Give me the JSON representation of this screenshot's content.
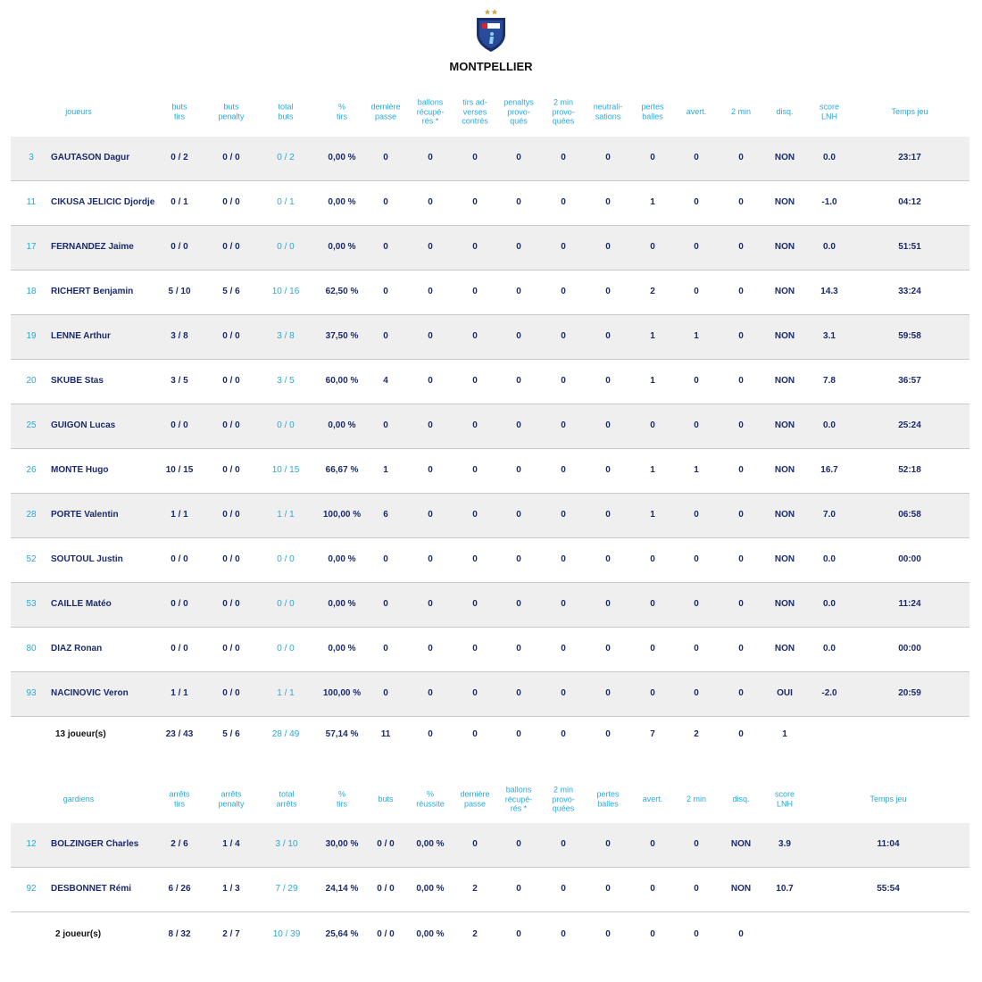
{
  "header": {
    "title": "MONTPELLIER"
  },
  "players": {
    "columns": [
      "joueurs",
      "buts\ntirs",
      "buts\npenalty",
      "total\nbuts",
      "%\ntirs",
      "dernière\npasse",
      "ballons\nrécupé-\nrés *",
      "tirs ad-\nverses\ncontrés",
      "penaltys\nprovo-\nqués",
      "2 min\nprovo-\nquées",
      "neutrali-\nsations",
      "pertes\nballes",
      "avert.",
      "2 min",
      "disq.",
      "score\nLNH",
      "Temps jeu"
    ],
    "rows": [
      [
        "3",
        "GAUTASON Dagur",
        "0 / 2",
        "0 / 0",
        "0 / 2",
        "0,00 %",
        "0",
        "0",
        "0",
        "0",
        "0",
        "0",
        "0",
        "0",
        "0",
        "NON",
        "0.0",
        "23:17"
      ],
      [
        "11",
        "CIKUSA JELICIC Djordje",
        "0 / 1",
        "0 / 0",
        "0 / 1",
        "0,00 %",
        "0",
        "0",
        "0",
        "0",
        "0",
        "0",
        "1",
        "0",
        "0",
        "NON",
        "-1.0",
        "04:12"
      ],
      [
        "17",
        "FERNANDEZ Jaime",
        "0 / 0",
        "0 / 0",
        "0 / 0",
        "0,00 %",
        "0",
        "0",
        "0",
        "0",
        "0",
        "0",
        "0",
        "0",
        "0",
        "NON",
        "0.0",
        "51:51"
      ],
      [
        "18",
        "RICHERT Benjamin",
        "5 / 10",
        "5 / 6",
        "10 / 16",
        "62,50 %",
        "0",
        "0",
        "0",
        "0",
        "0",
        "0",
        "2",
        "0",
        "0",
        "NON",
        "14.3",
        "33:24"
      ],
      [
        "19",
        "LENNE Arthur",
        "3 / 8",
        "0 / 0",
        "3 / 8",
        "37,50 %",
        "0",
        "0",
        "0",
        "0",
        "0",
        "0",
        "1",
        "1",
        "0",
        "NON",
        "3.1",
        "59:58"
      ],
      [
        "20",
        "SKUBE Stas",
        "3 / 5",
        "0 / 0",
        "3 / 5",
        "60,00 %",
        "4",
        "0",
        "0",
        "0",
        "0",
        "0",
        "1",
        "0",
        "0",
        "NON",
        "7.8",
        "36:57"
      ],
      [
        "25",
        "GUIGON Lucas",
        "0 / 0",
        "0 / 0",
        "0 / 0",
        "0,00 %",
        "0",
        "0",
        "0",
        "0",
        "0",
        "0",
        "0",
        "0",
        "0",
        "NON",
        "0.0",
        "25:24"
      ],
      [
        "26",
        "MONTE Hugo",
        "10 / 15",
        "0 / 0",
        "10 / 15",
        "66,67 %",
        "1",
        "0",
        "0",
        "0",
        "0",
        "0",
        "1",
        "1",
        "0",
        "NON",
        "16.7",
        "52:18"
      ],
      [
        "28",
        "PORTE Valentin",
        "1 / 1",
        "0 / 0",
        "1 / 1",
        "100,00 %",
        "6",
        "0",
        "0",
        "0",
        "0",
        "0",
        "1",
        "0",
        "0",
        "NON",
        "7.0",
        "06:58"
      ],
      [
        "52",
        "SOUTOUL Justin",
        "0 / 0",
        "0 / 0",
        "0 / 0",
        "0,00 %",
        "0",
        "0",
        "0",
        "0",
        "0",
        "0",
        "0",
        "0",
        "0",
        "NON",
        "0.0",
        "00:00"
      ],
      [
        "53",
        "CAILLE Matéo",
        "0 / 0",
        "0 / 0",
        "0 / 0",
        "0,00 %",
        "0",
        "0",
        "0",
        "0",
        "0",
        "0",
        "0",
        "0",
        "0",
        "NON",
        "0.0",
        "11:24"
      ],
      [
        "80",
        "DIAZ Ronan",
        "0 / 0",
        "0 / 0",
        "0 / 0",
        "0,00 %",
        "0",
        "0",
        "0",
        "0",
        "0",
        "0",
        "0",
        "0",
        "0",
        "NON",
        "0.0",
        "00:00"
      ],
      [
        "93",
        "NACINOVIC Veron",
        "1 / 1",
        "0 / 0",
        "1 / 1",
        "100,00 %",
        "0",
        "0",
        "0",
        "0",
        "0",
        "0",
        "0",
        "0",
        "0",
        "OUI",
        "-2.0",
        "20:59"
      ]
    ],
    "total": [
      "13 joueur(s)",
      "23 / 43",
      "5 / 6",
      "28 / 49",
      "57,14 %",
      "11",
      "0",
      "0",
      "0",
      "0",
      "0",
      "7",
      "2",
      "0",
      "1"
    ]
  },
  "goalkeepers": {
    "columns": [
      "gardiens",
      "arrêts\ntirs",
      "arrêts\npenalty",
      "total\narrêts",
      "%\ntirs",
      "buts",
      "%\nréussite",
      "dernière\npasse",
      "ballons\nrécupé-\nrés *",
      "2 min\nprovo-\nquées",
      "pertes\nballes",
      "avert.",
      "2 min",
      "disq.",
      "score\nLNH",
      "Temps jeu"
    ],
    "rows": [
      [
        "12",
        "BOLZINGER Charles",
        "2 / 6",
        "1 / 4",
        "3 / 10",
        "30,00 %",
        "0 / 0",
        "0,00 %",
        "0",
        "0",
        "0",
        "0",
        "0",
        "0",
        "NON",
        "3.9",
        "11:04"
      ],
      [
        "92",
        "DESBONNET Rémi",
        "6 / 26",
        "1 / 3",
        "7 / 29",
        "24,14 %",
        "0 / 0",
        "0,00 %",
        "2",
        "0",
        "0",
        "0",
        "0",
        "0",
        "NON",
        "10.7",
        "55:54"
      ]
    ],
    "total": [
      "2 joueur(s)",
      "8 / 32",
      "2 / 7",
      "10 / 39",
      "25,64 %",
      "0 / 0",
      "0,00 %",
      "2",
      "0",
      "0",
      "0",
      "0",
      "0",
      "0"
    ]
  }
}
